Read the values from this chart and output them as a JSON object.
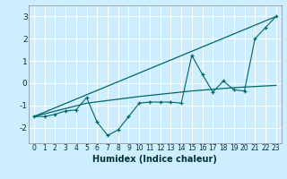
{
  "title": "",
  "xlabel": "Humidex (Indice chaleur)",
  "bg_color": "#cceeff",
  "grid_color": "#b0d8d8",
  "line_color": "#006666",
  "xlim": [
    -0.5,
    23.5
  ],
  "ylim": [
    -2.7,
    3.5
  ],
  "yticks": [
    -2,
    -1,
    0,
    1,
    2,
    3
  ],
  "xticks": [
    0,
    1,
    2,
    3,
    4,
    5,
    6,
    7,
    8,
    9,
    10,
    11,
    12,
    13,
    14,
    15,
    16,
    17,
    18,
    19,
    20,
    21,
    22,
    23
  ],
  "series": [
    [
      0,
      -1.5
    ],
    [
      1,
      -1.5
    ],
    [
      2,
      -1.4
    ],
    [
      3,
      -1.25
    ],
    [
      4,
      -1.2
    ],
    [
      5,
      -0.65
    ],
    [
      6,
      -1.75
    ],
    [
      7,
      -2.35
    ],
    [
      8,
      -2.1
    ],
    [
      9,
      -1.5
    ],
    [
      10,
      -0.9
    ],
    [
      11,
      -0.85
    ],
    [
      12,
      -0.85
    ],
    [
      13,
      -0.85
    ],
    [
      14,
      -0.9
    ],
    [
      15,
      1.25
    ],
    [
      16,
      0.4
    ],
    [
      17,
      -0.4
    ],
    [
      18,
      0.1
    ],
    [
      19,
      -0.3
    ],
    [
      20,
      -0.35
    ],
    [
      21,
      2.0
    ],
    [
      22,
      2.5
    ],
    [
      23,
      3.0
    ]
  ],
  "line_straight": [
    [
      0,
      -1.5
    ],
    [
      23,
      3.0
    ]
  ],
  "line_smooth": [
    [
      0,
      -1.5
    ],
    [
      5,
      -0.9
    ],
    [
      10,
      -0.6
    ],
    [
      15,
      -0.35
    ],
    [
      19,
      -0.2
    ],
    [
      23,
      -0.1
    ]
  ]
}
